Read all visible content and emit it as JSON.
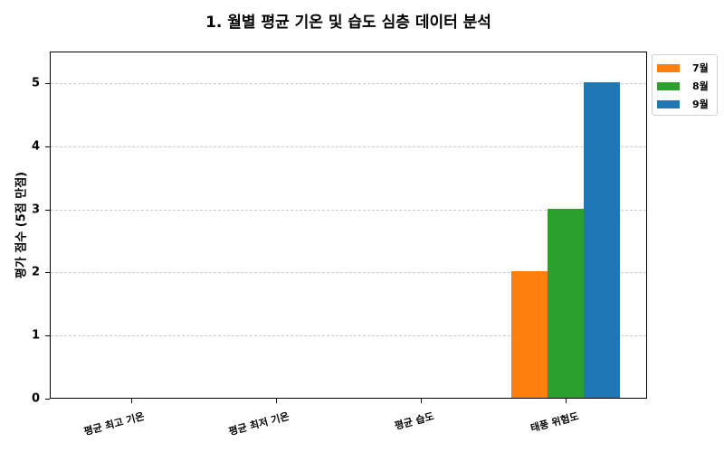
{
  "chart_data": {
    "type": "bar",
    "title": "1. 월별 평균 기온 및 습도 심층 데이터 분석",
    "xlabel": "",
    "ylabel": "평가 점수 (5점 만점)",
    "categories": [
      "평균 최고 기온",
      "평균 최저 기온",
      "평균 습도",
      "태풍 위험도"
    ],
    "series": [
      {
        "name": "7월",
        "color": "#ff7f0e",
        "values": [
          0,
          0,
          0,
          2
        ]
      },
      {
        "name": "8월",
        "color": "#2ca02c",
        "values": [
          0,
          0,
          0,
          3
        ]
      },
      {
        "name": "9월",
        "color": "#1f77b4",
        "values": [
          0,
          0,
          0,
          5
        ]
      }
    ],
    "ylim": [
      0,
      5.5
    ],
    "yticks": [
      "0",
      "1",
      "2",
      "3",
      "4",
      "5"
    ],
    "grid": true,
    "legend_position": "upper right outside"
  }
}
